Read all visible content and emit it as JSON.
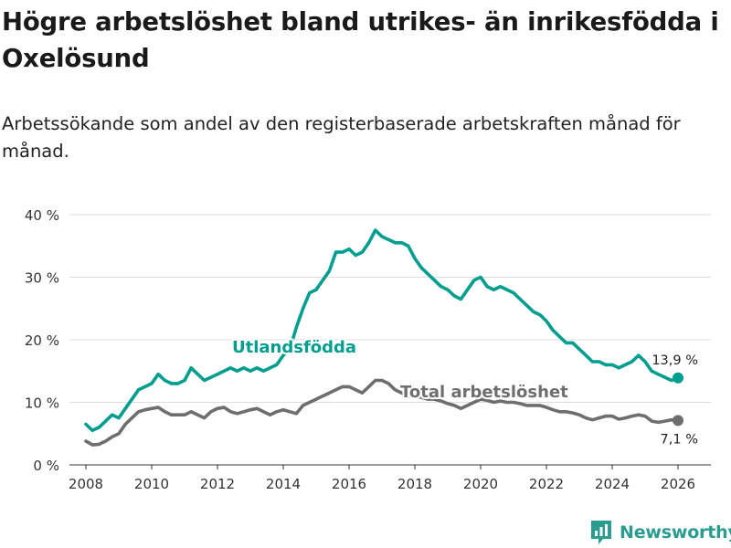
{
  "title": "Högre arbetslöshet bland utrikes- än inrikesfödda i Oxelösund",
  "subtitle": "Arbetssökande som andel av den registerbaserade arbetskraften månad för månad.",
  "brand": "Newsworthy",
  "colors": {
    "foreign": "#009e8e",
    "total": "#6e6e6e",
    "grid": "#dddddd",
    "axis": "#333333"
  },
  "chart_data": {
    "type": "line",
    "x_ticks": [
      "2008",
      "2010",
      "2012",
      "2014",
      "2016",
      "2018",
      "2020",
      "2022",
      "2024",
      "2026"
    ],
    "y_ticks": [
      "0 %",
      "10 %",
      "20 %",
      "30 %",
      "40 %"
    ],
    "xlim": [
      2007.5,
      2027
    ],
    "ylim": [
      0,
      40
    ],
    "series": [
      {
        "name": "Utlandsfödda",
        "label": "Utlandsfödda",
        "end_label": "13,9 %",
        "points": [
          [
            2008.0,
            6.5
          ],
          [
            2008.2,
            5.5
          ],
          [
            2008.4,
            6.0
          ],
          [
            2008.6,
            7.0
          ],
          [
            2008.8,
            8.0
          ],
          [
            2009.0,
            7.5
          ],
          [
            2009.2,
            9.0
          ],
          [
            2009.4,
            10.5
          ],
          [
            2009.6,
            12.0
          ],
          [
            2009.8,
            12.5
          ],
          [
            2010.0,
            13.0
          ],
          [
            2010.2,
            14.5
          ],
          [
            2010.4,
            13.5
          ],
          [
            2010.6,
            13.0
          ],
          [
            2010.8,
            13.0
          ],
          [
            2011.0,
            13.5
          ],
          [
            2011.2,
            15.5
          ],
          [
            2011.4,
            14.5
          ],
          [
            2011.6,
            13.5
          ],
          [
            2011.8,
            14.0
          ],
          [
            2012.0,
            14.5
          ],
          [
            2012.2,
            15.0
          ],
          [
            2012.4,
            15.5
          ],
          [
            2012.6,
            15.0
          ],
          [
            2012.8,
            15.5
          ],
          [
            2013.0,
            15.0
          ],
          [
            2013.2,
            15.5
          ],
          [
            2013.4,
            15.0
          ],
          [
            2013.6,
            15.5
          ],
          [
            2013.8,
            16.0
          ],
          [
            2014.0,
            17.5
          ],
          [
            2014.2,
            18.5
          ],
          [
            2014.4,
            22.0
          ],
          [
            2014.6,
            25.0
          ],
          [
            2014.8,
            27.5
          ],
          [
            2015.0,
            28.0
          ],
          [
            2015.2,
            29.5
          ],
          [
            2015.4,
            31.0
          ],
          [
            2015.6,
            34.0
          ],
          [
            2015.8,
            34.0
          ],
          [
            2016.0,
            34.5
          ],
          [
            2016.2,
            33.5
          ],
          [
            2016.4,
            34.0
          ],
          [
            2016.6,
            35.5
          ],
          [
            2016.8,
            37.5
          ],
          [
            2017.0,
            36.5
          ],
          [
            2017.2,
            36.0
          ],
          [
            2017.4,
            35.5
          ],
          [
            2017.6,
            35.5
          ],
          [
            2017.8,
            35.0
          ],
          [
            2018.0,
            33.0
          ],
          [
            2018.2,
            31.5
          ],
          [
            2018.4,
            30.5
          ],
          [
            2018.6,
            29.5
          ],
          [
            2018.8,
            28.5
          ],
          [
            2019.0,
            28.0
          ],
          [
            2019.2,
            27.0
          ],
          [
            2019.4,
            26.5
          ],
          [
            2019.6,
            28.0
          ],
          [
            2019.8,
            29.5
          ],
          [
            2020.0,
            30.0
          ],
          [
            2020.2,
            28.5
          ],
          [
            2020.4,
            28.0
          ],
          [
            2020.6,
            28.5
          ],
          [
            2020.8,
            28.0
          ],
          [
            2021.0,
            27.5
          ],
          [
            2021.2,
            26.5
          ],
          [
            2021.4,
            25.5
          ],
          [
            2021.6,
            24.5
          ],
          [
            2021.8,
            24.0
          ],
          [
            2022.0,
            23.0
          ],
          [
            2022.2,
            21.5
          ],
          [
            2022.4,
            20.5
          ],
          [
            2022.6,
            19.5
          ],
          [
            2022.8,
            19.5
          ],
          [
            2023.0,
            18.5
          ],
          [
            2023.2,
            17.5
          ],
          [
            2023.4,
            16.5
          ],
          [
            2023.6,
            16.5
          ],
          [
            2023.8,
            16.0
          ],
          [
            2024.0,
            16.0
          ],
          [
            2024.2,
            15.5
          ],
          [
            2024.4,
            16.0
          ],
          [
            2024.6,
            16.5
          ],
          [
            2024.8,
            17.5
          ],
          [
            2025.0,
            16.5
          ],
          [
            2025.2,
            15.0
          ],
          [
            2025.4,
            14.5
          ],
          [
            2025.6,
            14.0
          ],
          [
            2025.8,
            13.5
          ],
          [
            2026.0,
            13.9
          ]
        ]
      },
      {
        "name": "Total arbetslöshet",
        "label": "Total arbetslöshet",
        "end_label": "7,1 %",
        "points": [
          [
            2008.0,
            3.8
          ],
          [
            2008.2,
            3.2
          ],
          [
            2008.4,
            3.3
          ],
          [
            2008.6,
            3.8
          ],
          [
            2008.8,
            4.5
          ],
          [
            2009.0,
            5.0
          ],
          [
            2009.2,
            6.5
          ],
          [
            2009.4,
            7.5
          ],
          [
            2009.6,
            8.5
          ],
          [
            2009.8,
            8.8
          ],
          [
            2010.0,
            9.0
          ],
          [
            2010.2,
            9.2
          ],
          [
            2010.4,
            8.5
          ],
          [
            2010.6,
            8.0
          ],
          [
            2010.8,
            8.0
          ],
          [
            2011.0,
            8.0
          ],
          [
            2011.2,
            8.5
          ],
          [
            2011.4,
            8.0
          ],
          [
            2011.6,
            7.5
          ],
          [
            2011.8,
            8.5
          ],
          [
            2012.0,
            9.0
          ],
          [
            2012.2,
            9.2
          ],
          [
            2012.4,
            8.5
          ],
          [
            2012.6,
            8.2
          ],
          [
            2012.8,
            8.5
          ],
          [
            2013.0,
            8.8
          ],
          [
            2013.2,
            9.0
          ],
          [
            2013.4,
            8.5
          ],
          [
            2013.6,
            8.0
          ],
          [
            2013.8,
            8.5
          ],
          [
            2014.0,
            8.8
          ],
          [
            2014.2,
            8.5
          ],
          [
            2014.4,
            8.2
          ],
          [
            2014.6,
            9.5
          ],
          [
            2014.8,
            10.0
          ],
          [
            2015.0,
            10.5
          ],
          [
            2015.2,
            11.0
          ],
          [
            2015.4,
            11.5
          ],
          [
            2015.6,
            12.0
          ],
          [
            2015.8,
            12.5
          ],
          [
            2016.0,
            12.5
          ],
          [
            2016.2,
            12.0
          ],
          [
            2016.4,
            11.5
          ],
          [
            2016.6,
            12.5
          ],
          [
            2016.8,
            13.5
          ],
          [
            2017.0,
            13.5
          ],
          [
            2017.2,
            13.0
          ],
          [
            2017.4,
            12.0
          ],
          [
            2017.6,
            11.5
          ],
          [
            2017.8,
            11.0
          ],
          [
            2018.0,
            11.0
          ],
          [
            2018.2,
            10.8
          ],
          [
            2018.4,
            10.5
          ],
          [
            2018.6,
            10.5
          ],
          [
            2018.8,
            10.2
          ],
          [
            2019.0,
            9.8
          ],
          [
            2019.2,
            9.5
          ],
          [
            2019.4,
            9.0
          ],
          [
            2019.6,
            9.5
          ],
          [
            2019.8,
            10.0
          ],
          [
            2020.0,
            10.5
          ],
          [
            2020.2,
            10.3
          ],
          [
            2020.4,
            10.0
          ],
          [
            2020.6,
            10.2
          ],
          [
            2020.8,
            10.0
          ],
          [
            2021.0,
            10.0
          ],
          [
            2021.2,
            9.8
          ],
          [
            2021.4,
            9.5
          ],
          [
            2021.6,
            9.5
          ],
          [
            2021.8,
            9.5
          ],
          [
            2022.0,
            9.2
          ],
          [
            2022.2,
            8.8
          ],
          [
            2022.4,
            8.5
          ],
          [
            2022.6,
            8.5
          ],
          [
            2022.8,
            8.3
          ],
          [
            2023.0,
            8.0
          ],
          [
            2023.2,
            7.5
          ],
          [
            2023.4,
            7.2
          ],
          [
            2023.6,
            7.5
          ],
          [
            2023.8,
            7.8
          ],
          [
            2024.0,
            7.8
          ],
          [
            2024.2,
            7.3
          ],
          [
            2024.4,
            7.5
          ],
          [
            2024.6,
            7.8
          ],
          [
            2024.8,
            8.0
          ],
          [
            2025.0,
            7.8
          ],
          [
            2025.2,
            7.0
          ],
          [
            2025.4,
            6.8
          ],
          [
            2025.6,
            7.0
          ],
          [
            2025.8,
            7.2
          ],
          [
            2026.0,
            7.1
          ]
        ]
      }
    ]
  }
}
